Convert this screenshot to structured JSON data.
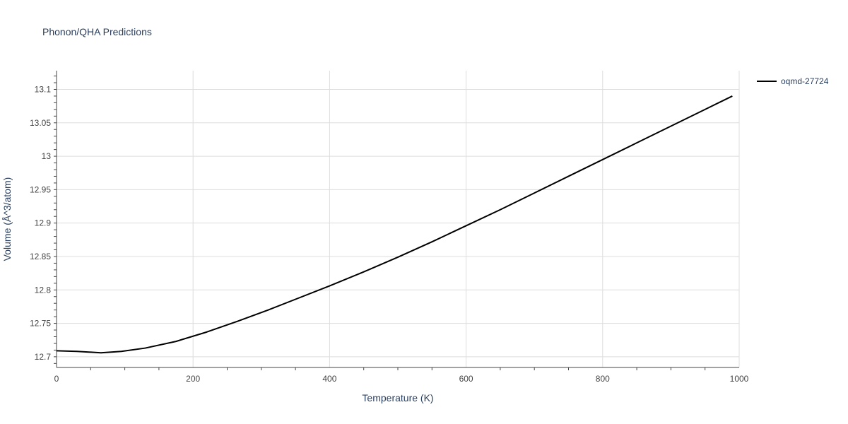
{
  "chart_data": {
    "type": "line",
    "title": "Phonon/QHA Predictions",
    "xlabel": "Temperature (K)",
    "ylabel": "Volume (Å^3/atom)",
    "xlim": [
      0,
      1000
    ],
    "ylim": [
      12.684,
      13.128
    ],
    "x_ticks": [
      0,
      200,
      400,
      600,
      800,
      1000
    ],
    "x_tick_labels": [
      "0",
      "200",
      "400",
      "600",
      "800",
      "1000"
    ],
    "y_ticks": [
      12.7,
      12.75,
      12.8,
      12.85,
      12.9,
      12.95,
      13.0,
      13.05,
      13.1
    ],
    "y_tick_labels": [
      "12.7",
      "12.75",
      "12.8",
      "12.85",
      "12.9",
      "12.95",
      "13",
      "13.05",
      "13.1"
    ],
    "grid": true,
    "legend_position": "top-right",
    "series": [
      {
        "name": "oqmd-27724",
        "color": "#000000",
        "x": [
          0,
          30,
          65,
          95,
          130,
          175,
          220,
          265,
          310,
          355,
          400,
          450,
          500,
          550,
          600,
          650,
          700,
          750,
          800,
          850,
          900,
          950,
          990
        ],
        "y": [
          12.709,
          12.708,
          12.706,
          12.708,
          12.713,
          12.723,
          12.737,
          12.753,
          12.77,
          12.788,
          12.806,
          12.827,
          12.849,
          12.872,
          12.896,
          12.92,
          12.945,
          12.97,
          12.995,
          13.02,
          13.045,
          13.07,
          13.09
        ]
      }
    ]
  }
}
